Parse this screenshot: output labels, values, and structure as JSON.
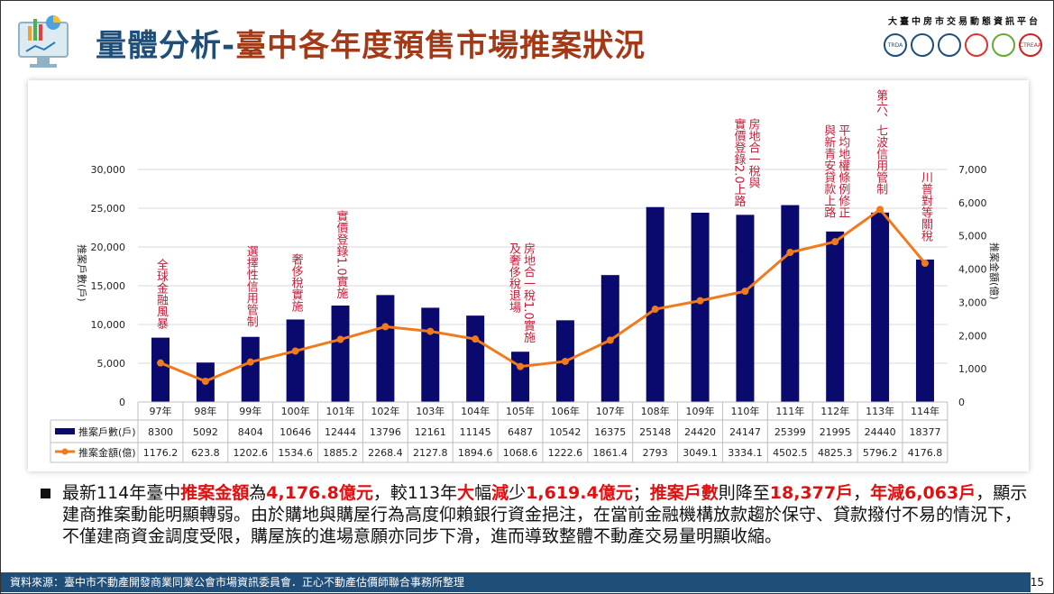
{
  "header": {
    "title_part1": "量體分析-",
    "title_part2": "臺中各年度預售市場推案狀況",
    "org": "大臺中房市交易動態資訊平台",
    "logo_text": "TRDA",
    "logo_text2": "CTREAA"
  },
  "colors": {
    "bar": "#0a0a6e",
    "line": "#f07b1c",
    "annotation": "#c0203a",
    "title_blue": "#1f4e79",
    "title_red": "#a33a17"
  },
  "chart_data": {
    "type": "bar+line",
    "categories": [
      "97年",
      "98年",
      "99年",
      "100年",
      "101年",
      "102年",
      "103年",
      "104年",
      "105年",
      "106年",
      "107年",
      "108年",
      "109年",
      "110年",
      "111年",
      "112年",
      "113年",
      "114年"
    ],
    "series": [
      {
        "name": "推案戶數(戶)",
        "type": "bar",
        "axis": "left",
        "values": [
          8300,
          5092,
          8404,
          10646,
          12444,
          13796,
          12161,
          11145,
          6487,
          10542,
          16375,
          25148,
          24420,
          24147,
          25399,
          21995,
          24440,
          18377
        ]
      },
      {
        "name": "推案金額(億)",
        "type": "line",
        "axis": "right",
        "values": [
          1176.2,
          623.8,
          1202.6,
          1534.6,
          1885.2,
          2268.4,
          2127.8,
          1894.6,
          1068.6,
          1222.6,
          1861.4,
          2793,
          3049.1,
          3334.1,
          4502.5,
          4825.3,
          5796.2,
          4176.8
        ]
      }
    ],
    "ylabel_left": "推案戶數(戶)",
    "ylabel_right": "推案金額(億)",
    "ylim_left": [
      0,
      30000
    ],
    "ylim_right": [
      0,
      7000
    ],
    "yticks_left": [
      "0",
      "5,000",
      "10,000",
      "15,000",
      "20,000",
      "25,000",
      "30,000"
    ],
    "yticks_right": [
      "0",
      "1,000",
      "2,000",
      "3,000",
      "4,000",
      "5,000",
      "6,000",
      "7,000"
    ],
    "grid": true,
    "legend": "data-table-below",
    "annotations": [
      {
        "category": "97年",
        "text": "全球金融風暴"
      },
      {
        "category": "99年",
        "text": "選擇性信用管制"
      },
      {
        "category": "100年",
        "text": "奢侈稅實施"
      },
      {
        "category": "101年",
        "text": "實價登錄1.0實施"
      },
      {
        "category": "105年",
        "text": "房地合一稅1.0實施\n及奢侈稅退場"
      },
      {
        "category": "110年",
        "text": "房地合一稅與\n實價登錄2.0上路"
      },
      {
        "category": "112年",
        "text": "平均地權條例修正\n與新青安貸款上路"
      },
      {
        "category": "113年",
        "text": "第六、七波信用管制"
      },
      {
        "category": "114年",
        "text": "川普對等關稅"
      }
    ]
  },
  "summary": [
    {
      "t": "最新114年臺中"
    },
    {
      "t": "推案金額",
      "hl": true
    },
    {
      "t": "為"
    },
    {
      "t": "4,176.8億元",
      "hl": true
    },
    {
      "t": "，較113年"
    },
    {
      "t": "大",
      "hl": true
    },
    {
      "t": "幅"
    },
    {
      "t": "減",
      "hl": true
    },
    {
      "t": "少"
    },
    {
      "t": "1,619.4億元",
      "hl": true
    },
    {
      "t": "；"
    },
    {
      "t": "推案戶數",
      "hl": true
    },
    {
      "t": "則降至"
    },
    {
      "t": "18,377戶",
      "hl": true
    },
    {
      "t": "，"
    },
    {
      "t": "年減6,063戶",
      "hl": true
    },
    {
      "t": "，顯示建商推案動能明顯轉弱。由於購地與購屋行為高度仰賴銀行資金挹注，在當前金融機構放款趨於保守、貸款撥付不易的情況下，不僅建商資金調度受限，購屋族的進場意願亦同步下滑，進而導致整體不動產交易量明顯收縮。"
    }
  ],
  "footer": {
    "source": "資料來源：臺中市不動產開發商業同業公會市場資訊委員會．正心不動產估價師聯合事務所整理",
    "page": "15"
  }
}
